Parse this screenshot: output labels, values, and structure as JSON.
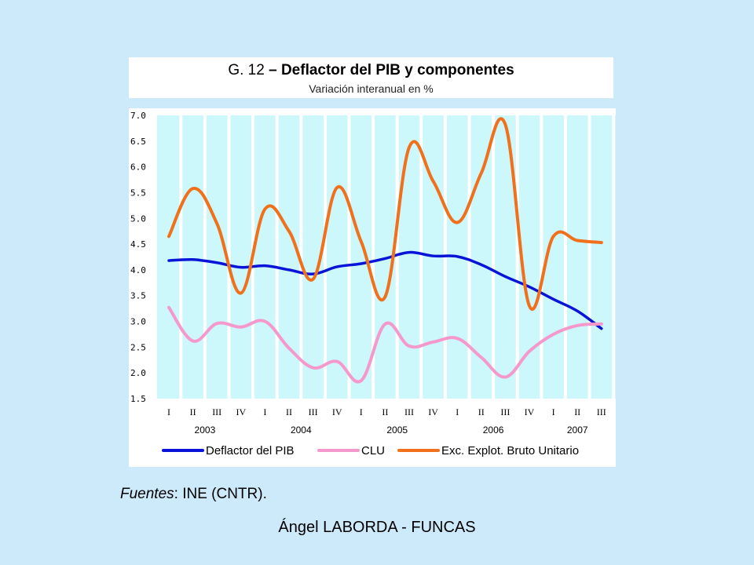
{
  "header": {
    "title_prefix": "G. 12",
    "title_sep": " – ",
    "title_main": "Deflactor del PIB y componentes",
    "subtitle": "Variación interanual en %"
  },
  "source": {
    "label": "Fuentes",
    "text": ": INE (CNTR)."
  },
  "footer": {
    "credit": "Ángel LABORDA - FUNCAS"
  },
  "chart_data": {
    "type": "line",
    "title": "G. 12 – Deflactor del PIB y componentes",
    "subtitle": "Variación interanual en %",
    "categories": [
      "I",
      "II",
      "III",
      "IV",
      "I",
      "II",
      "III",
      "IV",
      "I",
      "II",
      "III",
      "IV",
      "I",
      "II",
      "III",
      "IV",
      "I",
      "II",
      "III"
    ],
    "years": [
      {
        "label": "2003",
        "quarters": 4
      },
      {
        "label": "2004",
        "quarters": 4
      },
      {
        "label": "2005",
        "quarters": 4
      },
      {
        "label": "2006",
        "quarters": 4
      },
      {
        "label": "2007",
        "quarters": 3
      }
    ],
    "ylim": [
      1.5,
      7.0
    ],
    "yticks": [
      "7.0",
      "6.5",
      "6.0",
      "5.5",
      "5.0",
      "4.5",
      "4.0",
      "3.5",
      "3.0",
      "2.5",
      "2.0",
      "1.5"
    ],
    "grid": "vertical",
    "legend_position": "bottom",
    "background": "#ccf7fb",
    "series": [
      {
        "name": "Deflactor del PIB",
        "color": "#0a14d8",
        "values": [
          4.18,
          4.2,
          4.14,
          4.05,
          4.08,
          4.0,
          3.92,
          4.06,
          4.12,
          4.22,
          4.34,
          4.27,
          4.26,
          4.1,
          3.87,
          3.67,
          3.43,
          3.2,
          2.86
        ]
      },
      {
        "name": "CLU",
        "color": "#f598cb",
        "values": [
          3.27,
          2.62,
          2.96,
          2.89,
          3.0,
          2.48,
          2.1,
          2.22,
          1.85,
          2.95,
          2.52,
          2.6,
          2.67,
          2.3,
          1.92,
          2.42,
          2.75,
          2.92,
          2.95
        ]
      },
      {
        "name": "Exc. Explot. Bruto Unitario",
        "color": "#f0701c",
        "values": [
          4.65,
          5.58,
          4.9,
          3.55,
          5.18,
          4.75,
          3.82,
          5.6,
          4.55,
          3.48,
          6.38,
          5.72,
          4.92,
          5.88,
          6.82,
          3.3,
          4.65,
          4.57,
          4.53
        ]
      }
    ]
  }
}
